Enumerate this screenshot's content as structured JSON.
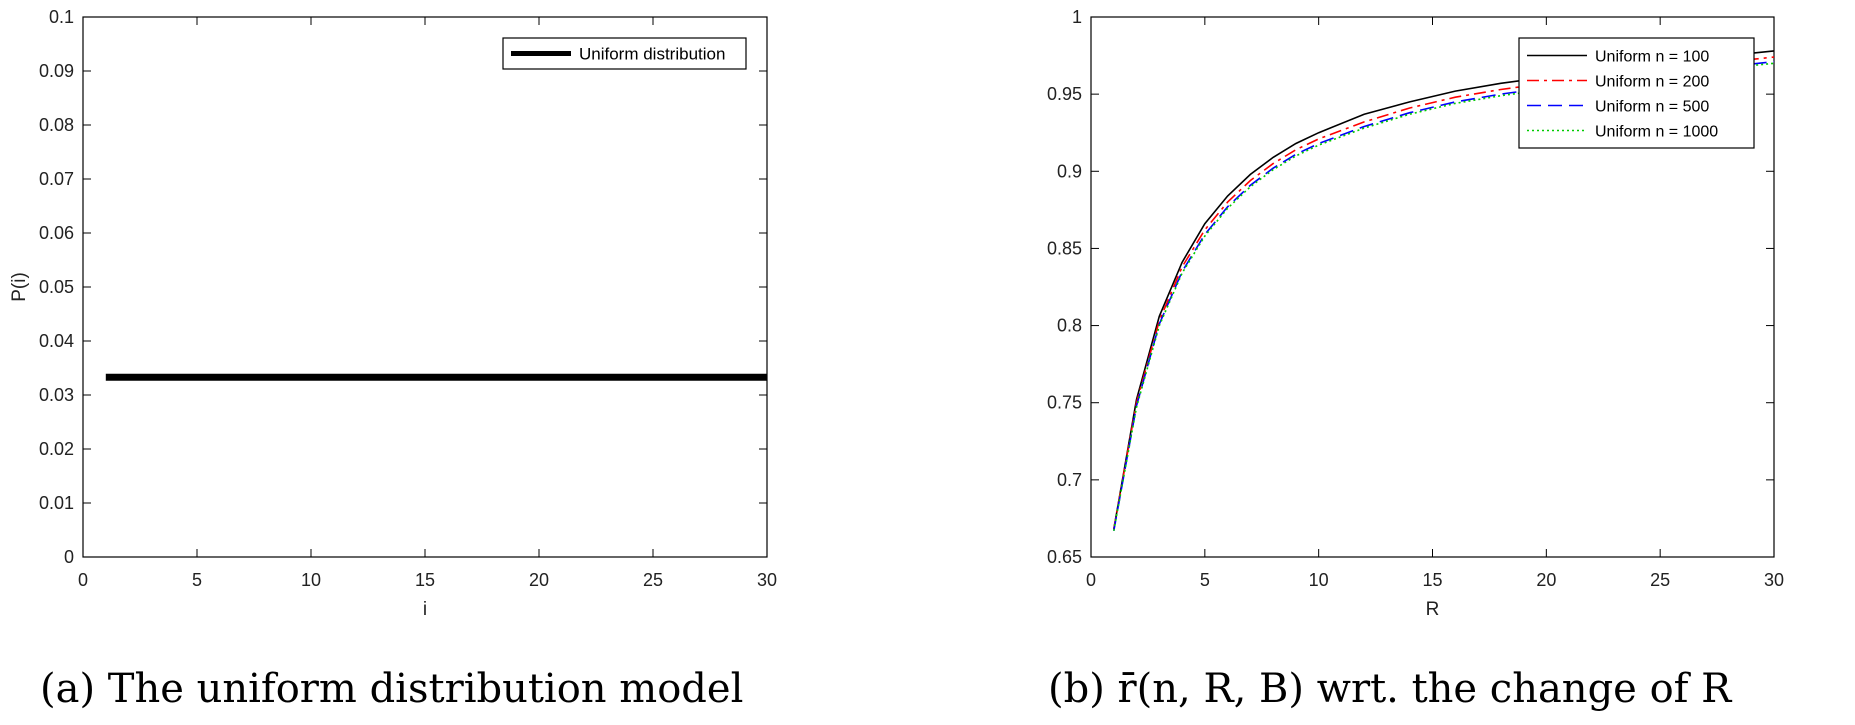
{
  "chart_data": [
    {
      "type": "line",
      "panel": "a",
      "xlabel": "i",
      "ylabel": "P(i)",
      "xlim": [
        0,
        30
      ],
      "ylim": [
        0,
        0.1
      ],
      "xticks": [
        0,
        5,
        10,
        15,
        20,
        25,
        30
      ],
      "yticks": [
        0,
        0.01,
        0.02,
        0.03,
        0.04,
        0.05,
        0.06,
        0.07,
        0.08,
        0.09,
        0.1
      ],
      "grid": false,
      "legend_position": "top-right",
      "series": [
        {
          "name": "Uniform distribution",
          "color": "#000000",
          "x": [
            1,
            30
          ],
          "y": [
            0.0333,
            0.0333
          ]
        }
      ],
      "caption": "(a) The uniform distribution model"
    },
    {
      "type": "line",
      "panel": "b",
      "xlabel": "R",
      "ylabel": "",
      "xlim": [
        0,
        30
      ],
      "ylim": [
        0.65,
        1
      ],
      "xticks": [
        0,
        5,
        10,
        15,
        20,
        25,
        30
      ],
      "yticks": [
        0.65,
        0.7,
        0.75,
        0.8,
        0.85,
        0.9,
        0.95,
        1
      ],
      "grid": false,
      "legend_position": "top-right",
      "x": [
        1,
        2,
        3,
        4,
        5,
        6,
        7,
        8,
        9,
        10,
        12,
        14,
        16,
        18,
        20,
        22,
        24,
        26,
        28,
        30
      ],
      "series": [
        {
          "name": "Uniform n = 100",
          "color": "#000000",
          "dash": "solid",
          "y": [
            0.668,
            0.752,
            0.806,
            0.841,
            0.866,
            0.884,
            0.898,
            0.909,
            0.918,
            0.925,
            0.937,
            0.945,
            0.952,
            0.957,
            0.961,
            0.965,
            0.969,
            0.972,
            0.975,
            0.978
          ]
        },
        {
          "name": "Uniform n = 200",
          "color": "#ff0000",
          "dash": "dashdot",
          "y": [
            0.668,
            0.75,
            0.803,
            0.838,
            0.862,
            0.88,
            0.894,
            0.905,
            0.914,
            0.921,
            0.932,
            0.941,
            0.948,
            0.953,
            0.957,
            0.961,
            0.965,
            0.968,
            0.971,
            0.974
          ]
        },
        {
          "name": "Uniform n = 500",
          "color": "#0000ff",
          "dash": "dashed",
          "y": [
            0.667,
            0.748,
            0.801,
            0.835,
            0.859,
            0.877,
            0.891,
            0.902,
            0.911,
            0.918,
            0.929,
            0.938,
            0.945,
            0.95,
            0.954,
            0.958,
            0.962,
            0.965,
            0.968,
            0.971
          ]
        },
        {
          "name": "Uniform n = 1000",
          "color": "#00cc00",
          "dash": "dotted",
          "y": [
            0.667,
            0.747,
            0.8,
            0.834,
            0.858,
            0.876,
            0.89,
            0.901,
            0.91,
            0.917,
            0.928,
            0.937,
            0.944,
            0.949,
            0.953,
            0.957,
            0.961,
            0.964,
            0.967,
            0.97
          ]
        }
      ],
      "caption": "(b) r̄(n, R, B) wrt. the change of R"
    }
  ]
}
